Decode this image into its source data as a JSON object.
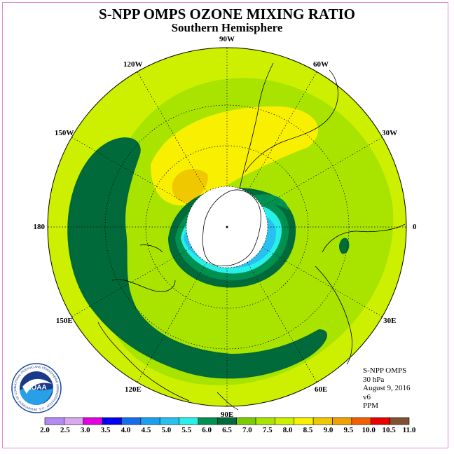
{
  "title": "S-NPP OMPS OZONE MIXING RATIO",
  "subtitle": "Southern Hemisphere",
  "longitude_labels": [
    {
      "text": "90W",
      "lon": -90
    },
    {
      "text": "60W",
      "lon": -60
    },
    {
      "text": "30W",
      "lon": -30
    },
    {
      "text": "0",
      "lon": 0
    },
    {
      "text": "30E",
      "lon": 30
    },
    {
      "text": "60E",
      "lon": 60
    },
    {
      "text": "90E",
      "lon": 90
    },
    {
      "text": "120E",
      "lon": 120
    },
    {
      "text": "150E",
      "lon": 150
    },
    {
      "text": "180",
      "lon": 180
    },
    {
      "text": "150W",
      "lon": -150
    },
    {
      "text": "120W",
      "lon": -120
    }
  ],
  "info": {
    "instrument": "S-NPP OMPS",
    "level": "30 hPa",
    "date": "August 9, 2016",
    "version": "v6",
    "units": "PPM"
  },
  "logo": {
    "text": "NOAA",
    "ring_text": "NATIONAL OCEANIC AND ATMOSPHERIC ADMINISTRATION · U.S. DEPARTMENT OF COMMERCE"
  },
  "colorbar": {
    "ticks": [
      "2.0",
      "2.5",
      "3.0",
      "3.5",
      "4.0",
      "4.5",
      "5.0",
      "5.5",
      "6.0",
      "6.5",
      "7.0",
      "7.5",
      "8.0",
      "8.5",
      "9.0",
      "9.5",
      "10.0",
      "10.5",
      "11.0"
    ],
    "colors": [
      "#b58af0",
      "#d9a8f0",
      "#e000e0",
      "#0000ee",
      "#1470e8",
      "#1aa0f0",
      "#28c0f0",
      "#28f0e8",
      "#009050",
      "#006a3a",
      "#7acc00",
      "#a8e400",
      "#ccf000",
      "#f8f000",
      "#f0c800",
      "#f0a000",
      "#f06000",
      "#e80000",
      "#805030"
    ]
  },
  "map_colors": {
    "c65": "#006a3a",
    "c70": "#7acc00",
    "c75": "#a8e400",
    "c80": "#ccf000",
    "c85": "#f8f000",
    "c90": "#f0c800",
    "c60": "#009050",
    "c55": "#28f0e8",
    "c50": "#28c0f0",
    "c45": "#1aa0f0"
  }
}
